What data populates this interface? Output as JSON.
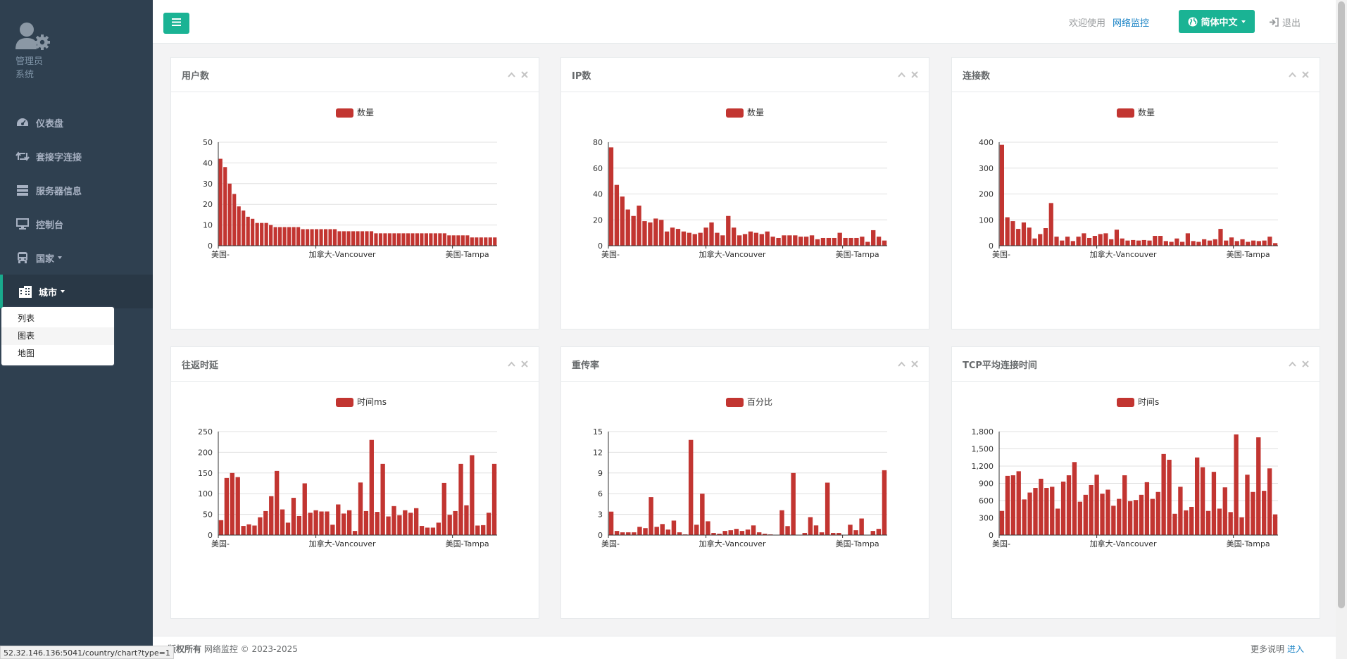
{
  "sidebar": {
    "profile": {
      "line1": "管理员",
      "line2": "系统"
    },
    "items": [
      {
        "label": "仪表盘",
        "icon": "dashboard-icon"
      },
      {
        "label": "套接字连接",
        "icon": "retweet-icon"
      },
      {
        "label": "服务器信息",
        "icon": "server-icon"
      },
      {
        "label": "控制台",
        "icon": "desktop-icon"
      },
      {
        "label": "国家",
        "icon": "bus-icon"
      },
      {
        "label": "城市",
        "icon": "building-icon"
      }
    ],
    "city_submenu": [
      "列表",
      "图表",
      "地图"
    ]
  },
  "topbar": {
    "welcome": "欢迎使用",
    "site_name": "网络监控",
    "language": "简体中文",
    "logout": "退出"
  },
  "accent_color": "#1ab394",
  "bar_color": "#c23531",
  "footer": {
    "copyright_label": "版权所有",
    "copyright_text": "网络监控 © 2023-2025",
    "more_label": "更多说明",
    "more_link": "进入"
  },
  "status_url": "52.32.146.136:5041/country/chart?type=1",
  "chart_data": [
    {
      "panel_title": "用户数",
      "type": "bar",
      "legend": "数量",
      "x_tick_labels": [
        "美国-",
        "加拿大-Vancouver",
        "美国-Tampa"
      ],
      "ylim": [
        0,
        50
      ],
      "y_ticks": [
        "0",
        "10",
        "20",
        "30",
        "40",
        "50"
      ],
      "values": [
        42,
        38,
        30,
        25,
        19,
        17,
        14,
        13,
        11,
        11,
        11,
        10,
        9,
        9,
        9,
        9,
        9,
        9,
        8,
        8,
        8,
        8,
        8,
        8,
        8,
        8,
        7,
        7,
        7,
        7,
        7,
        7,
        7,
        7,
        6,
        6,
        6,
        6,
        6,
        6,
        6,
        6,
        6,
        6,
        6,
        6,
        6,
        6,
        6,
        6,
        5,
        5,
        5,
        5,
        5,
        4,
        4,
        4,
        4,
        4,
        4
      ]
    },
    {
      "panel_title": "IP数",
      "type": "bar",
      "legend": "数量",
      "x_tick_labels": [
        "美国-",
        "加拿大-Vancouver",
        "美国-Tampa"
      ],
      "ylim": [
        0,
        80
      ],
      "y_ticks": [
        "0",
        "20",
        "40",
        "60",
        "80"
      ],
      "values": [
        76,
        47,
        38,
        28,
        23,
        31,
        19,
        18,
        21,
        20,
        11,
        14,
        13,
        11,
        10,
        9,
        10,
        14,
        18,
        10,
        8,
        23,
        14,
        8,
        9,
        11,
        10,
        9,
        11,
        7,
        6,
        8,
        8,
        8,
        7,
        7,
        8,
        5,
        6,
        6,
        6,
        10,
        6,
        6,
        6,
        7,
        3,
        12,
        7,
        4
      ]
    },
    {
      "panel_title": "连接数",
      "type": "bar",
      "legend": "数量",
      "x_tick_labels": [
        "美国-",
        "加拿大-Vancouver",
        "美国-Tampa"
      ],
      "ylim": [
        0,
        400
      ],
      "y_ticks": [
        "0",
        "100",
        "200",
        "300",
        "400"
      ],
      "values": [
        390,
        110,
        95,
        65,
        90,
        70,
        28,
        45,
        68,
        165,
        35,
        20,
        35,
        18,
        35,
        48,
        30,
        38,
        45,
        48,
        25,
        62,
        28,
        20,
        22,
        20,
        22,
        20,
        38,
        38,
        18,
        15,
        28,
        15,
        48,
        18,
        15,
        25,
        20,
        25,
        65,
        20,
        32,
        18,
        25,
        15,
        20,
        18,
        20,
        35,
        10
      ]
    },
    {
      "panel_title": "往返时延",
      "type": "bar",
      "legend": "时间ms",
      "x_tick_labels": [
        "美国-",
        "加拿大-Vancouver",
        "美国-Tampa"
      ],
      "ylim": [
        0,
        250
      ],
      "y_ticks": [
        "0",
        "50",
        "100",
        "150",
        "200",
        "250"
      ],
      "values": [
        36,
        138,
        150,
        140,
        22,
        26,
        23,
        43,
        58,
        94,
        155,
        62,
        30,
        90,
        46,
        125,
        54,
        60,
        57,
        57,
        25,
        74,
        52,
        60,
        10,
        127,
        58,
        230,
        56,
        172,
        45,
        70,
        48,
        60,
        54,
        65,
        22,
        18,
        18,
        30,
        126,
        49,
        58,
        172,
        72,
        193,
        23,
        24,
        54,
        172
      ]
    },
    {
      "panel_title": "重传率",
      "type": "bar",
      "legend": "百分比",
      "x_tick_labels": [
        "美国-",
        "加拿大-Vancouver",
        "美国-Tampa"
      ],
      "ylim": [
        0,
        15
      ],
      "y_ticks": [
        "0",
        "3",
        "6",
        "9",
        "12",
        "15"
      ],
      "values": [
        3.4,
        0.6,
        0.4,
        0.4,
        0.4,
        1.2,
        1.0,
        5.5,
        1.2,
        1.6,
        0.8,
        2.1,
        0.4,
        0.1,
        13.8,
        1.5,
        6.0,
        2.0,
        0.3,
        0.2,
        0.6,
        0.7,
        0.9,
        0.6,
        0.8,
        1.4,
        0.4,
        0.2,
        0.1,
        0.0,
        3.6,
        1.3,
        9.0,
        0.0,
        0.3,
        2.6,
        1.4,
        0.4,
        7.6,
        0.3,
        0.3,
        0.0,
        1.5,
        0.7,
        2.4,
        0.0,
        0.6,
        0.9,
        9.4
      ]
    },
    {
      "panel_title": "TCP平均连接时间",
      "type": "bar",
      "legend": "时间s",
      "x_tick_labels": [
        "美国-",
        "加拿大-Vancouver",
        "美国-Tampa"
      ],
      "ylim": [
        0,
        1800
      ],
      "y_ticks": [
        "0",
        "300",
        "600",
        "900",
        "1,200",
        "1,500",
        "1,800"
      ],
      "values": [
        420,
        1030,
        1040,
        1110,
        620,
        740,
        820,
        980,
        820,
        840,
        460,
        930,
        1040,
        1270,
        580,
        700,
        870,
        1050,
        720,
        790,
        510,
        630,
        1040,
        590,
        610,
        700,
        920,
        630,
        750,
        1410,
        1310,
        370,
        840,
        430,
        490,
        1350,
        1180,
        420,
        1100,
        460,
        830,
        400,
        1750,
        310,
        1050,
        750,
        1700,
        770,
        1160,
        360
      ]
    }
  ]
}
